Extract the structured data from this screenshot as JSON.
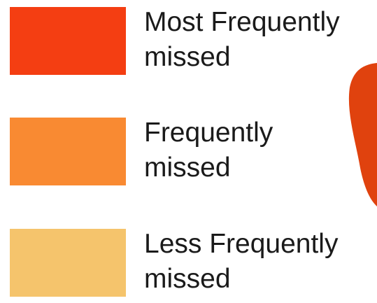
{
  "legend": {
    "items": [
      {
        "color": "#f43e12",
        "lines": [
          "Most Frequently",
          "missed"
        ]
      },
      {
        "color": "#f98a32",
        "lines": [
          "Frequently",
          "missed"
        ]
      },
      {
        "color": "#f5c46c",
        "lines": [
          "Less Frequently",
          "missed"
        ]
      }
    ]
  }
}
